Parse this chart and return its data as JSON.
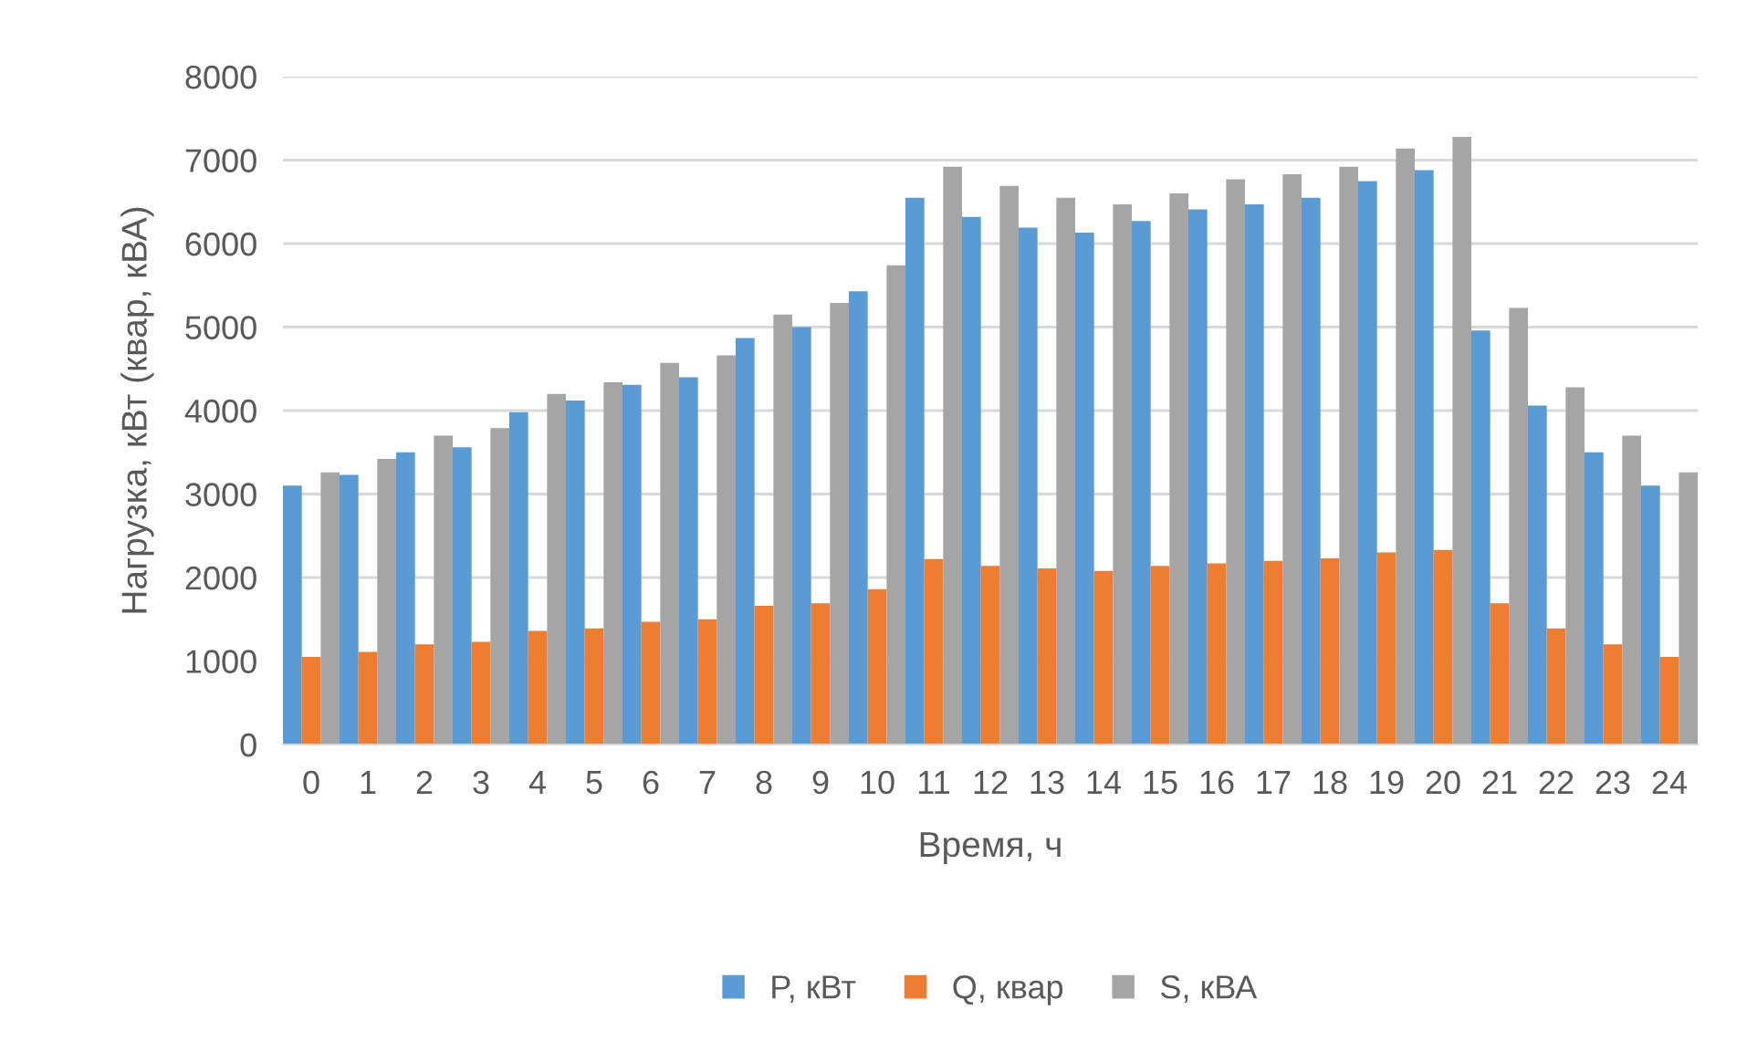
{
  "chart_data": {
    "type": "bar",
    "xlabel": "Время, ч",
    "ylabel": "Нагрузка, кВт (квар, кВА)",
    "categories": [
      "0",
      "1",
      "2",
      "3",
      "4",
      "5",
      "6",
      "7",
      "8",
      "9",
      "10",
      "11",
      "12",
      "13",
      "14",
      "15",
      "16",
      "17",
      "18",
      "19",
      "20",
      "21",
      "22",
      "23",
      "24"
    ],
    "series": [
      {
        "name": "P, кВт",
        "color": "#5b9bd5",
        "values": [
          3100,
          3230,
          3500,
          3560,
          3980,
          4120,
          4310,
          4400,
          4870,
          5000,
          5430,
          6550,
          6320,
          6190,
          6130,
          6270,
          6410,
          6470,
          6550,
          6750,
          6880,
          4960,
          4060,
          3500,
          3100
        ]
      },
      {
        "name": "Q, квар",
        "color": "#ed7d31",
        "values": [
          1050,
          1110,
          1200,
          1230,
          1360,
          1390,
          1470,
          1500,
          1660,
          1690,
          1860,
          2220,
          2140,
          2110,
          2080,
          2140,
          2170,
          2200,
          2230,
          2300,
          2330,
          1690,
          1390,
          1200,
          1050
        ]
      },
      {
        "name": "S, кВА",
        "color": "#a5a5a5",
        "values": [
          3260,
          3420,
          3700,
          3790,
          4200,
          4340,
          4570,
          4660,
          5150,
          5290,
          5740,
          6920,
          6690,
          6550,
          6470,
          6600,
          6770,
          6830,
          6920,
          7140,
          7280,
          5230,
          4280,
          3700,
          3260
        ]
      }
    ],
    "ylim": [
      0,
      8000
    ],
    "yticks": [
      0,
      1000,
      2000,
      3000,
      4000,
      5000,
      6000,
      7000,
      8000
    ],
    "grid": "y",
    "legend": "bottom"
  }
}
